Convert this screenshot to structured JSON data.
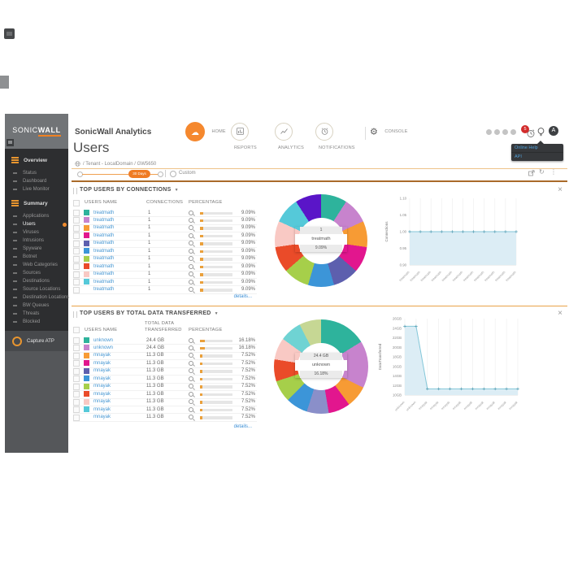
{
  "brand": {
    "prefix": "SONIC",
    "suffix": "WALL"
  },
  "header": {
    "product": "SonicWall Analytics",
    "nav": [
      {
        "label": "HOME",
        "icon": "cloud-icon",
        "active": true
      },
      {
        "label": "REPORTS",
        "icon": "reports-icon",
        "active": false
      },
      {
        "label": "ANALYTICS",
        "icon": "analytics-icon",
        "active": false
      },
      {
        "label": "NOTIFICATIONS",
        "icon": "notifications-clock-icon",
        "active": false
      },
      {
        "label": "CONSOLE",
        "icon": "gear-icon",
        "active": false
      }
    ],
    "badge_count": "5",
    "avatar_initial": "A",
    "help_menu": [
      {
        "label": "Online Help"
      },
      {
        "label": "API"
      }
    ]
  },
  "page": {
    "title": "Users",
    "breadcrumb": "/ Tenant - LocalDomain / GW5650"
  },
  "timebar": {
    "range_pill": "30 Days",
    "custom_label": "Custom"
  },
  "sidebar": {
    "sections": [
      {
        "label": "Overview",
        "items": [
          {
            "label": "Status",
            "active": false
          },
          {
            "label": "Dashboard",
            "active": false
          },
          {
            "label": "Live Monitor",
            "active": false
          }
        ]
      },
      {
        "label": "Summary",
        "items": [
          {
            "label": "Applications",
            "active": false
          },
          {
            "label": "Users",
            "active": true
          },
          {
            "label": "Viruses",
            "active": false
          },
          {
            "label": "Intrusions",
            "active": false
          },
          {
            "label": "Spyware",
            "active": false
          },
          {
            "label": "Botnet",
            "active": false
          },
          {
            "label": "Web Categories",
            "active": false
          },
          {
            "label": "Sources",
            "active": false
          },
          {
            "label": "Destinations",
            "active": false
          },
          {
            "label": "Source Locations",
            "active": false
          },
          {
            "label": "Destination Locations",
            "active": false
          },
          {
            "label": "BW Queues",
            "active": false
          },
          {
            "label": "Threats",
            "active": false
          },
          {
            "label": "Blocked",
            "active": false
          }
        ]
      }
    ],
    "footer_item": "Capture ATP"
  },
  "panels": [
    {
      "title": "TOP USERS BY CONNECTIONS",
      "col_headers": [
        "USERS NAME",
        "CONNECTIONS",
        "PERCENTAGE"
      ],
      "details_label": "details...",
      "rows": [
        {
          "color": "#2eb39c",
          "name": "treatmath",
          "value": "1",
          "pct": "9.09%"
        },
        {
          "color": "#c783cd",
          "name": "treatmath",
          "value": "1",
          "pct": "9.09%"
        },
        {
          "color": "#f79b34",
          "name": "treatmath",
          "value": "1",
          "pct": "9.09%"
        },
        {
          "color": "#e2168e",
          "name": "treatmath",
          "value": "1",
          "pct": "9.09%"
        },
        {
          "color": "#5d5fae",
          "name": "treatmath",
          "value": "1",
          "pct": "9.09%"
        },
        {
          "color": "#3c95d8",
          "name": "treatmath",
          "value": "1",
          "pct": "9.09%"
        },
        {
          "color": "#a6cf4a",
          "name": "treatmath",
          "value": "1",
          "pct": "9.09%"
        },
        {
          "color": "#ea4b29",
          "name": "treatmath",
          "value": "1",
          "pct": "9.09%"
        },
        {
          "color": "#f9c9c4",
          "name": "treatmath",
          "value": "1",
          "pct": "9.09%"
        },
        {
          "color": "#55c9d9",
          "name": "treatmath",
          "value": "1",
          "pct": "9.09%"
        },
        {
          "color": null,
          "name": "treatmath",
          "value": "1",
          "pct": "9.09%"
        }
      ]
    },
    {
      "title": "TOP USERS BY TOTAL DATA TRANSFERRED",
      "col_headers": [
        "USERS NAME",
        "TOTAL DATA TRANSFERRED",
        "PERCENTAGE"
      ],
      "details_label": "details...",
      "rows": [
        {
          "color": "#2eb39c",
          "name": "unknown",
          "value": "24.4 GB",
          "pct": "16.18%"
        },
        {
          "color": "#c783cd",
          "name": "unknown",
          "value": "24.4 GB",
          "pct": "16.18%"
        },
        {
          "color": "#f79b34",
          "name": "mnayak",
          "value": "11.3 GB",
          "pct": "7.52%"
        },
        {
          "color": "#e2168e",
          "name": "mnayak",
          "value": "11.3 GB",
          "pct": "7.52%"
        },
        {
          "color": "#5d5fae",
          "name": "mnayak",
          "value": "11.3 GB",
          "pct": "7.52%"
        },
        {
          "color": "#3c95d8",
          "name": "mnayak",
          "value": "11.3 GB",
          "pct": "7.52%"
        },
        {
          "color": "#a6cf4a",
          "name": "mnayak",
          "value": "11.3 GB",
          "pct": "7.52%"
        },
        {
          "color": "#ea4b29",
          "name": "mnayak",
          "value": "11.3 GB",
          "pct": "7.52%"
        },
        {
          "color": "#f9c9c4",
          "name": "mnayak",
          "value": "11.3 GB",
          "pct": "7.52%"
        },
        {
          "color": "#55c9d9",
          "name": "mnayak",
          "value": "11.3 GB",
          "pct": "7.52%"
        },
        {
          "color": null,
          "name": "mnayak",
          "value": "11.3 GB",
          "pct": "7.52%"
        }
      ]
    }
  ],
  "chart_data": [
    {
      "type": "pie",
      "title": "Top Users by Connections",
      "labels": [
        "treatmath",
        "treatmath",
        "treatmath",
        "treatmath",
        "treatmath",
        "treatmath",
        "treatmath",
        "treatmath",
        "treatmath",
        "treatmath",
        "treatmath"
      ],
      "values": [
        9.09,
        9.09,
        9.09,
        9.09,
        9.09,
        9.09,
        9.09,
        9.09,
        9.09,
        9.09,
        9.09
      ],
      "colors": [
        "#2eb39c",
        "#c783cd",
        "#f79b34",
        "#e2168e",
        "#5d5fae",
        "#3c95d8",
        "#a6cf4a",
        "#ea4b29",
        "#f9c9c4",
        "#55c9d9",
        "#5a15c8"
      ],
      "center_tooltip": [
        "1",
        "treatmath",
        "9.09%"
      ]
    },
    {
      "type": "line",
      "title": "Connections per user",
      "ylabel": "Connections",
      "x": [
        "treatmath",
        "treatmath",
        "treatmath",
        "treatmath",
        "treatmath",
        "treatmath",
        "treatmath",
        "treatmath",
        "treatmath",
        "treatmath",
        "treatmath"
      ],
      "values": [
        1,
        1,
        1,
        1,
        1,
        1,
        1,
        1,
        1,
        1,
        1
      ],
      "yticks": [
        "1.10",
        "1.05",
        "1.00",
        "0.95",
        "0.90"
      ],
      "ylim": [
        0.9,
        1.1
      ]
    },
    {
      "type": "pie",
      "title": "Top Users by Total Data Transferred",
      "labels": [
        "unknown",
        "unknown",
        "mnayak",
        "mnayak",
        "mnayak",
        "mnayak",
        "mnayak",
        "mnayak",
        "mnayak",
        "mnayak",
        "mnayak"
      ],
      "values": [
        16.18,
        16.18,
        7.52,
        7.52,
        7.52,
        7.52,
        7.52,
        7.52,
        7.52,
        7.52,
        7.52
      ],
      "colors": [
        "#2eb39c",
        "#c783cd",
        "#f79b34",
        "#e2168e",
        "#8a8fc9",
        "#3c95d8",
        "#a6cf4a",
        "#ea4b29",
        "#f9c9c4",
        "#6fd3d3",
        "#c6d794"
      ],
      "center_tooltip": [
        "24.4 GB",
        "unknown",
        "16.18%"
      ]
    },
    {
      "type": "line",
      "title": "Data transferred per user",
      "ylabel": "DataTransferred",
      "x": [
        "unknown",
        "unknown",
        "mnayak",
        "mnayak",
        "mnayak",
        "mnayak",
        "mnayak",
        "mnayak",
        "mnayak",
        "mnayak",
        "mnayak"
      ],
      "values": [
        24.4,
        24.4,
        11.3,
        11.3,
        11.3,
        11.3,
        11.3,
        11.3,
        11.3,
        11.3,
        11.3
      ],
      "yticks": [
        "26GB",
        "24GB",
        "22GB",
        "20GB",
        "18GB",
        "16GB",
        "14GB",
        "12GB",
        "10GB"
      ],
      "ylim": [
        10,
        26
      ]
    }
  ]
}
